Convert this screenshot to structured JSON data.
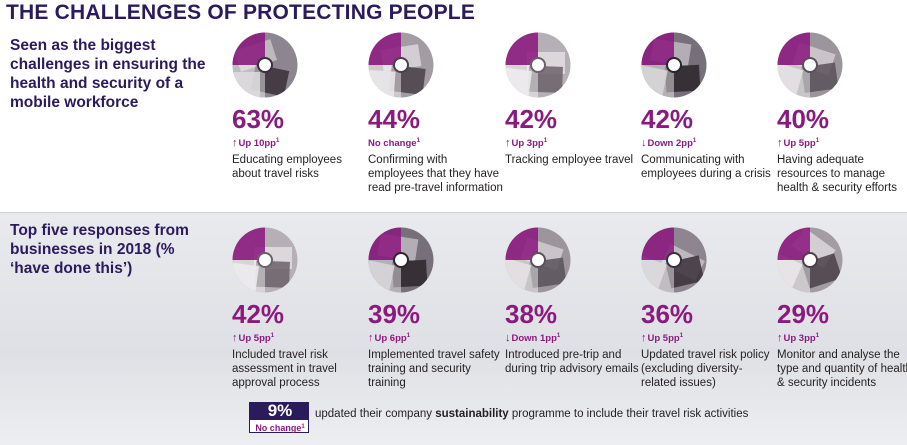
{
  "title": "THE CHALLENGES OF PROTECTING PEOPLE",
  "colors": {
    "navy": "#2b1a5c",
    "magenta": "#8b1a7e",
    "panel_grey": "#e3e4e9"
  },
  "chart_data": [
    {
      "type": "table",
      "title": "Seen as the biggest challenges in ensuring the health and security of a mobile workforce",
      "unit": "%",
      "items": [
        {
          "value": 63,
          "value_label": "63%",
          "change_direction": "up",
          "change_label": "Up 10pp",
          "footnote": "1",
          "label": "Educating employees about travel risks",
          "image_icon": "laptop-photo-icon"
        },
        {
          "value": 44,
          "value_label": "44%",
          "change_direction": "none",
          "change_label": "No change",
          "footnote": "1",
          "label": "Confirming with employees that they have read pre-travel information",
          "image_icon": "phone-photo-icon"
        },
        {
          "value": 42,
          "value_label": "42%",
          "change_direction": "up",
          "change_label": "Up 3pp",
          "footnote": "1",
          "label": "Tracking employee travel",
          "image_icon": "map-pin-photo-icon"
        },
        {
          "value": 42,
          "value_label": "42%",
          "change_direction": "down",
          "change_label": "Down 2pp",
          "footnote": "1",
          "label": "Communicating with employees during a crisis",
          "image_icon": "keyboard-photo-icon"
        },
        {
          "value": 40,
          "value_label": "40%",
          "change_direction": "up",
          "change_label": "Up 5pp",
          "footnote": "1",
          "label": "Having adequate resources to manage health & security efforts",
          "image_icon": "pills-photo-icon"
        }
      ]
    },
    {
      "type": "table",
      "title": "Top five responses from businesses in 2018 (% ‘have done this’)",
      "unit": "%",
      "items": [
        {
          "value": 42,
          "value_label": "42%",
          "change_direction": "up",
          "change_label": "Up 5pp",
          "footnote": "1",
          "label": "Included travel risk assessment in travel approval process",
          "image_icon": "document-photo-icon"
        },
        {
          "value": 39,
          "value_label": "39%",
          "change_direction": "up",
          "change_label": "Up 6pp",
          "footnote": "1",
          "label": "Implemented travel safety training and security training",
          "image_icon": "meeting-photo-icon"
        },
        {
          "value": 38,
          "value_label": "38%",
          "change_direction": "down",
          "change_label": "Down 1pp",
          "footnote": "1",
          "label": "Introduced pre-trip and during trip advisory emails",
          "image_icon": "laptop-email-photo-icon"
        },
        {
          "value": 36,
          "value_label": "36%",
          "change_direction": "up",
          "change_label": "Up 5pp",
          "footnote": "1",
          "label": "Updated travel risk policy (excluding diversity-related issues)",
          "image_icon": "signature-photo-icon"
        },
        {
          "value": 29,
          "value_label": "29%",
          "change_direction": "up",
          "change_label": "Up 3pp",
          "footnote": "1",
          "label": "Monitor and analyse the type and quantity of health & security incidents",
          "image_icon": "headset-photo-icon"
        }
      ]
    }
  ],
  "footer": {
    "value": 9,
    "value_label": "9%",
    "change_label": "No change",
    "footnote": "1",
    "text_before": "updated their company ",
    "text_bold": "sustainability",
    "text_after": " programme to include their travel risk activities"
  }
}
